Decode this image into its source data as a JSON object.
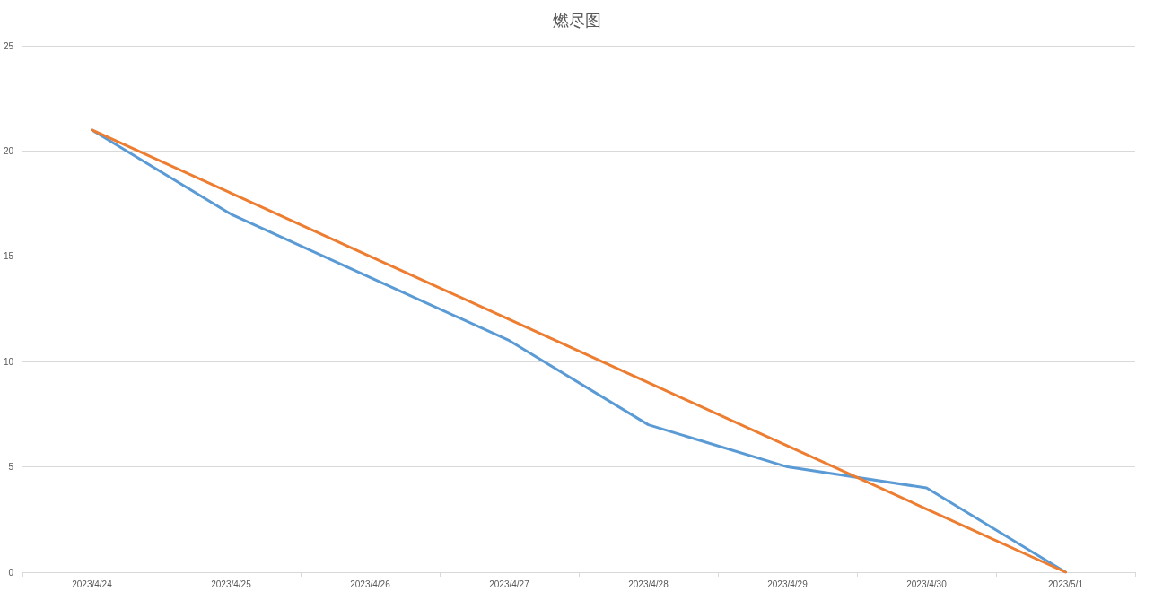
{
  "chart_data": {
    "type": "line",
    "title": "燃尽图",
    "categories": [
      "2023/4/24",
      "2023/4/25",
      "2023/4/26",
      "2023/4/27",
      "2023/4/28",
      "2023/4/29",
      "2023/4/30",
      "2023/5/1"
    ],
    "series": [
      {
        "color": "#5b9bd5",
        "values": [
          21,
          17,
          14,
          11,
          7,
          5,
          4,
          0
        ]
      },
      {
        "color": "#ed7d31",
        "values": [
          21,
          18,
          15,
          12,
          9,
          6,
          3,
          0
        ]
      }
    ],
    "ylim": [
      0,
      25
    ],
    "yticks": [
      0,
      5,
      10,
      15,
      20,
      25
    ],
    "grid": "y",
    "marker": "none",
    "line_style": "solid"
  }
}
